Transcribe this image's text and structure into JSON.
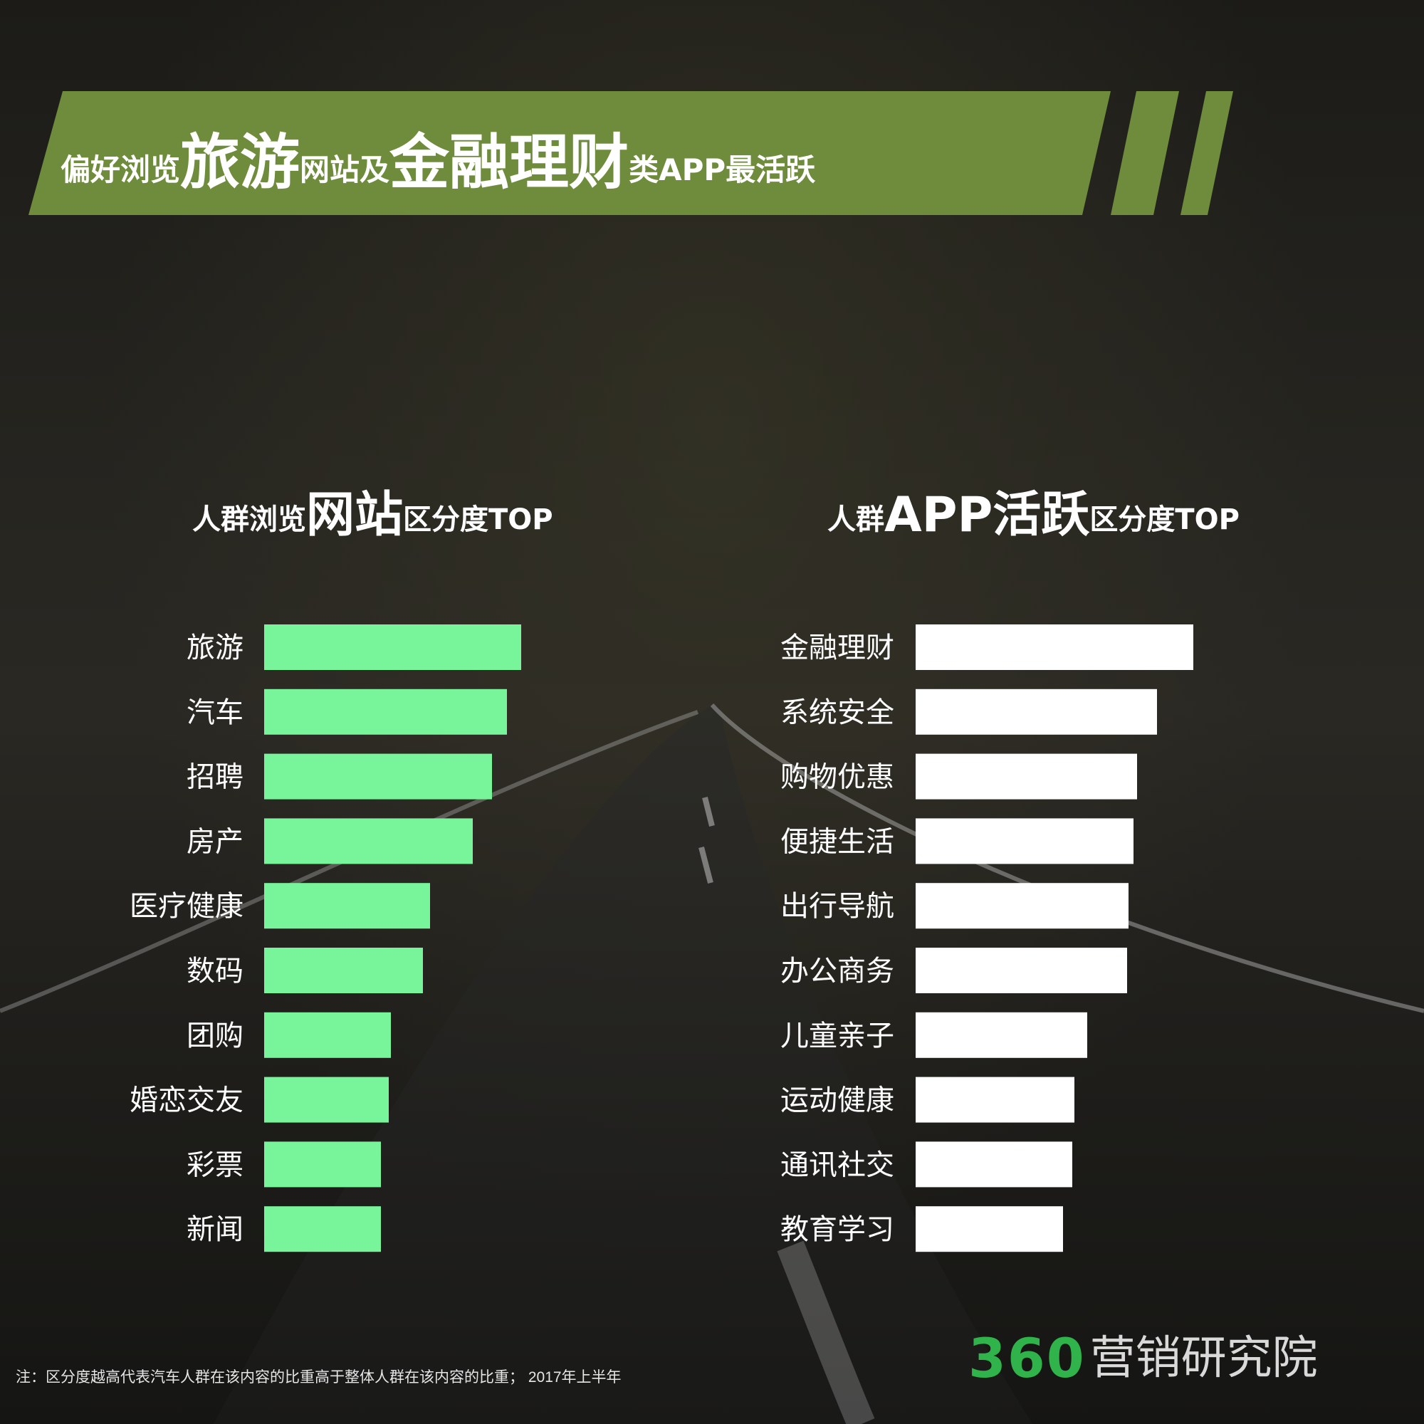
{
  "header": {
    "title_parts": [
      "偏好浏览",
      "旅游",
      "网站及",
      "金融理财",
      "类APP最活跃"
    ],
    "banner_color": "#6e8c3c"
  },
  "left_chart": {
    "title_parts": [
      "人群浏览",
      "网站",
      "区分度TOP"
    ]
  },
  "right_chart": {
    "title_parts": [
      "人群",
      "APP活跃",
      "区分度TOP"
    ]
  },
  "chart_data": [
    {
      "type": "bar",
      "orientation": "horizontal",
      "title": "人群浏览网站区分度TOP",
      "categories": [
        "旅游",
        "汽车",
        "招聘",
        "房产",
        "医疗健康",
        "数码",
        "团购",
        "婚恋交友",
        "彩票",
        "新闻"
      ],
      "values": [
        361,
        341,
        320,
        293,
        233,
        223,
        178,
        175,
        164,
        164
      ],
      "color": "#78f59a",
      "xlim": [
        0,
        400
      ]
    },
    {
      "type": "bar",
      "orientation": "horizontal",
      "title": "人群APP活跃区分度TOP",
      "categories": [
        "金融理财",
        "系统安全",
        "购物优惠",
        "便捷生活",
        "出行导航",
        "办公商务",
        "儿童亲子",
        "运动健康",
        "通讯社交",
        "教育学习"
      ],
      "values": [
        390,
        339,
        311,
        306,
        299,
        297,
        241,
        223,
        220,
        207
      ],
      "color": "#ffffff",
      "xlim": [
        0,
        400
      ]
    }
  ],
  "footnote": "注：区分度越高代表汽车人群在该内容的比重高于整体人群在该内容的比重； 2017年上半年",
  "logo": {
    "number": "360",
    "text": "营销研究院",
    "number_color": "#2fb34a"
  }
}
